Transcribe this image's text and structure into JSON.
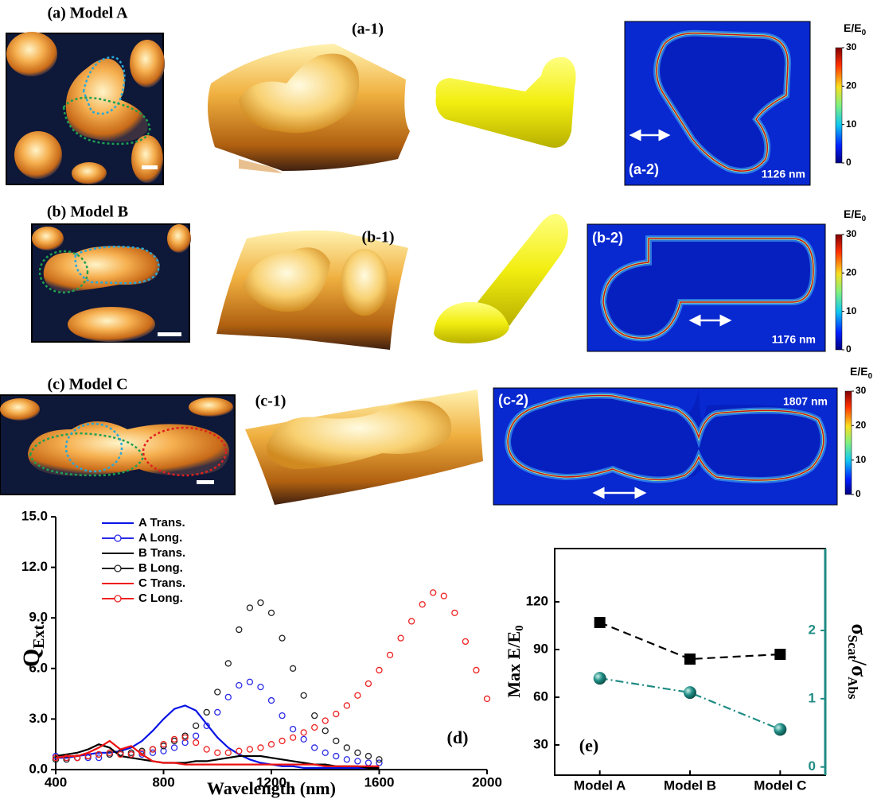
{
  "panels": [
    {
      "label": "(a) Model A",
      "label1": "(a-1)",
      "label2": "(a-2)",
      "wavelength": "1126 nm"
    },
    {
      "label": "(b) Model B",
      "label1": "(b-1)",
      "label2": "(b-2)",
      "wavelength": "1176 nm"
    },
    {
      "label": "(c) Model C",
      "label1": "(c-1)",
      "label2": "(c-2)",
      "wavelength": "1807 nm"
    }
  ],
  "colorbar": {
    "title": "E/E",
    "title_sub": "0",
    "lim": [
      0,
      30
    ],
    "ticks": [
      30,
      20,
      10,
      0
    ]
  },
  "chart_data": [
    {
      "type": "line",
      "panel_label": "(d)",
      "x_label": "Wavelength (nm)",
      "y_label": "Q",
      "y_label_sub": "Ext.",
      "xlim": [
        400,
        2000
      ],
      "xticks": [
        400,
        800,
        1200,
        1600,
        2000
      ],
      "ylim": [
        0,
        15
      ],
      "yticks": [
        {
          "value": 0,
          "label": "0.0"
        },
        {
          "value": 3,
          "label": "3.0"
        },
        {
          "value": 6,
          "label": "6.0"
        },
        {
          "value": 9,
          "label": "9.0"
        },
        {
          "value": 12,
          "label": "12.0"
        },
        {
          "value": 15,
          "label": "15.0"
        }
      ],
      "legend": "upper left",
      "x": [
        400,
        440,
        480,
        520,
        560,
        600,
        640,
        680,
        720,
        760,
        800,
        840,
        880,
        920,
        960,
        1000,
        1040,
        1080,
        1120,
        1160,
        1200,
        1240,
        1280,
        1320,
        1360,
        1400,
        1440,
        1480,
        1520,
        1560,
        1600,
        1640,
        1680,
        1720,
        1760,
        1800,
        1840,
        1880,
        1920,
        1960,
        2000
      ],
      "series": [
        {
          "name": "A Trans.",
          "color": "#0a14e6",
          "marker": "none",
          "values": [
            0.7,
            0.7,
            0.8,
            0.9,
            1.0,
            1.0,
            1.1,
            1.3,
            1.7,
            2.3,
            3.0,
            3.6,
            3.8,
            3.5,
            2.7,
            1.9,
            1.3,
            0.9,
            0.6,
            0.4,
            0.3,
            0.2,
            0.2,
            0.1,
            0.1,
            0.1,
            0.1,
            0.1,
            0.1,
            0.1,
            0.1,
            null,
            null,
            null,
            null,
            null,
            null,
            null,
            null,
            null,
            null
          ]
        },
        {
          "name": "A Long.",
          "color": "#2a2ae6",
          "marker": "circle",
          "values": [
            0.8,
            0.7,
            0.7,
            0.7,
            0.7,
            0.9,
            1.0,
            0.9,
            0.9,
            1.0,
            1.1,
            1.3,
            1.6,
            2.0,
            2.6,
            3.4,
            4.3,
            5.0,
            5.2,
            4.9,
            4.1,
            3.2,
            2.4,
            1.8,
            1.3,
            1.0,
            0.8,
            0.6,
            0.5,
            0.4,
            0.4,
            null,
            null,
            null,
            null,
            null,
            null,
            null,
            null,
            null,
            null
          ]
        },
        {
          "name": "B Trans.",
          "color": "#000000",
          "marker": "none",
          "values": [
            0.8,
            0.9,
            1.0,
            1.2,
            1.5,
            1.3,
            0.8,
            0.7,
            0.6,
            0.5,
            0.4,
            0.4,
            0.4,
            0.5,
            0.5,
            0.6,
            0.7,
            0.8,
            0.8,
            0.8,
            0.7,
            0.6,
            0.5,
            0.4,
            0.3,
            0.3,
            0.2,
            0.2,
            0.2,
            0.1,
            0.1,
            null,
            null,
            null,
            null,
            null,
            null,
            null,
            null,
            null,
            null
          ]
        },
        {
          "name": "B Long.",
          "color": "#222222",
          "marker": "circle",
          "values": [
            0.6,
            0.6,
            0.7,
            0.8,
            0.9,
            0.9,
            1.0,
            1.0,
            1.1,
            1.2,
            1.4,
            1.7,
            2.0,
            2.6,
            3.4,
            4.6,
            6.3,
            8.3,
            9.6,
            9.9,
            9.3,
            7.8,
            6.0,
            4.4,
            3.2,
            2.3,
            1.7,
            1.3,
            1.0,
            0.8,
            0.6,
            null,
            null,
            null,
            null,
            null,
            null,
            null,
            null,
            null,
            null
          ]
        },
        {
          "name": "C Trans.",
          "color": "#ee1010",
          "marker": "none",
          "values": [
            0.7,
            0.8,
            0.8,
            1.0,
            1.3,
            1.7,
            1.2,
            1.4,
            0.9,
            0.5,
            0.4,
            0.4,
            0.3,
            0.3,
            0.3,
            0.3,
            0.3,
            0.3,
            0.3,
            0.3,
            0.3,
            0.3,
            0.3,
            0.3,
            0.3,
            0.2,
            0.2,
            0.2,
            0.2,
            0.2,
            0.2,
            null,
            null,
            null,
            null,
            null,
            null,
            null,
            null,
            null,
            null
          ]
        },
        {
          "name": "C Long.",
          "color": "#ee2020",
          "marker": "circle",
          "values": [
            0.7,
            0.7,
            0.7,
            0.8,
            0.9,
            1.0,
            0.9,
            0.9,
            1.0,
            1.2,
            1.5,
            1.8,
            1.9,
            1.6,
            1.2,
            1.0,
            1.0,
            1.1,
            1.2,
            1.3,
            1.5,
            1.7,
            1.9,
            2.2,
            2.5,
            2.9,
            3.3,
            3.8,
            4.4,
            5.1,
            5.9,
            6.8,
            7.8,
            8.8,
            9.8,
            10.5,
            10.3,
            9.3,
            7.6,
            5.9,
            4.2
          ]
        }
      ]
    },
    {
      "type": "dual-line",
      "panel_label": "(e)",
      "y_label": "Max E/E",
      "y_label_sub": "0",
      "y2_label": [
        "σ",
        "Scat",
        "/σ",
        "Abs"
      ],
      "categories": [
        "Model A",
        "Model B",
        "Model C"
      ],
      "ylim": [
        11,
        153.5
      ],
      "yticks": [
        30,
        60,
        90,
        120
      ],
      "y2lim": [
        -0.12,
        3.2
      ],
      "y2ticks": [
        0,
        1,
        2
      ],
      "y2color": "#1f8c84",
      "series": [
        {
          "color": "#000000",
          "marker": "square",
          "dash": "dashed",
          "values": [
            107,
            84,
            87
          ]
        },
        {
          "color": "#1f8c84",
          "marker": "sphere",
          "dash": "dashdot",
          "axis": "y2",
          "values": [
            1.3,
            1.09,
            0.55
          ]
        }
      ]
    }
  ]
}
